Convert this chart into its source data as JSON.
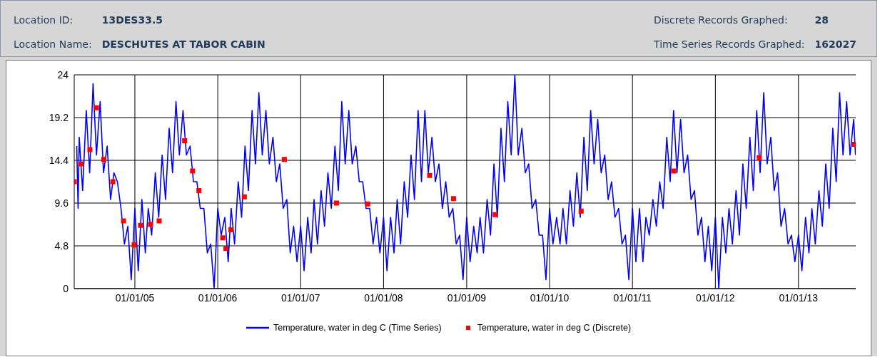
{
  "chart_data": {
    "type": "line",
    "annotations": [
      "Location ID:",
      "13DES33.5",
      "Location Name:",
      "DESCHUTES AT TABOR CABIN",
      "Discrete Records Graphed:",
      "28",
      "Time Series Records Graphed:",
      "162027"
    ],
    "xlim": [
      "2004-04-09",
      "2013-09-10"
    ],
    "xticks": [
      {
        "value": "2005-01-01",
        "label": "01/01/05"
      },
      {
        "value": "2006-01-01",
        "label": "01/01/06"
      },
      {
        "value": "2007-01-01",
        "label": "01/01/07"
      },
      {
        "value": "2008-01-01",
        "label": "01/01/08"
      },
      {
        "value": "2009-01-01",
        "label": "01/01/09"
      },
      {
        "value": "2010-01-01",
        "label": "01/01/10"
      },
      {
        "value": "2011-01-01",
        "label": "01/01/11"
      },
      {
        "value": "2012-01-01",
        "label": "01/01/12"
      },
      {
        "value": "2013-01-01",
        "label": "01/01/13"
      }
    ],
    "ylim": [
      0,
      24
    ],
    "yticks": [
      0,
      4.8,
      9.6,
      14.4,
      19.2,
      24
    ],
    "grid": true,
    "legend": "bottom",
    "line_style": "solid",
    "series": [
      {
        "name": "Temperature, water in deg C (Time Series)",
        "type": "line",
        "marker": "none",
        "color": "#0000ff",
        "x": [
          "2004-04-20",
          "2004-04-26",
          "2004-05-01",
          "2004-05-16",
          "2004-06-01",
          "2004-06-16",
          "2004-07-01",
          "2004-07-16",
          "2004-08-01",
          "2004-08-16",
          "2004-09-01",
          "2004-09-16",
          "2004-10-01",
          "2004-10-16",
          "2004-11-01",
          "2004-11-16",
          "2004-12-01",
          "2004-12-16",
          "2005-01-01",
          "2005-01-16",
          "2005-02-01",
          "2005-02-16",
          "2005-03-01",
          "2005-03-16",
          "2005-04-01",
          "2005-04-16",
          "2005-05-01",
          "2005-05-16",
          "2005-06-01",
          "2005-06-16",
          "2005-07-01",
          "2005-07-16",
          "2005-08-01",
          "2005-08-16",
          "2005-09-01",
          "2005-09-16",
          "2005-10-01",
          "2005-10-16",
          "2005-11-01",
          "2005-11-16",
          "2005-12-01",
          "2005-12-16",
          "2006-01-01",
          "2006-01-16",
          "2006-02-01",
          "2006-02-16",
          "2006-03-01",
          "2006-03-16",
          "2006-04-01",
          "2006-04-16",
          "2006-05-01",
          "2006-05-16",
          "2006-06-01",
          "2006-06-16",
          "2006-07-01",
          "2006-07-16",
          "2006-08-01",
          "2006-08-16",
          "2006-09-01",
          "2006-09-16",
          "2006-10-01",
          "2006-10-16",
          "2006-11-01",
          "2006-11-16",
          "2006-12-01",
          "2006-12-16",
          "2007-01-01",
          "2007-01-16",
          "2007-02-01",
          "2007-02-16",
          "2007-03-01",
          "2007-03-16",
          "2007-04-01",
          "2007-04-16",
          "2007-05-01",
          "2007-05-16",
          "2007-06-01",
          "2007-06-16",
          "2007-07-01",
          "2007-07-16",
          "2007-08-01",
          "2007-08-16",
          "2007-09-01",
          "2007-09-16",
          "2007-10-01",
          "2007-10-16",
          "2007-11-01",
          "2007-11-16",
          "2007-12-01",
          "2007-12-16",
          "2008-01-01",
          "2008-01-16",
          "2008-02-01",
          "2008-02-16",
          "2008-03-01",
          "2008-03-16",
          "2008-04-01",
          "2008-04-16",
          "2008-05-01",
          "2008-05-16",
          "2008-06-01",
          "2008-06-16",
          "2008-07-01",
          "2008-07-16",
          "2008-08-01",
          "2008-08-16",
          "2008-09-01",
          "2008-09-16",
          "2008-10-01",
          "2008-10-16",
          "2008-11-01",
          "2008-11-16",
          "2008-12-01",
          "2008-12-16",
          "2009-01-01",
          "2009-01-16",
          "2009-02-01",
          "2009-02-16",
          "2009-03-01",
          "2009-03-16",
          "2009-04-01",
          "2009-04-16",
          "2009-05-01",
          "2009-05-16",
          "2009-06-01",
          "2009-06-16",
          "2009-07-01",
          "2009-07-16",
          "2009-08-01",
          "2009-08-16",
          "2009-09-01",
          "2009-09-16",
          "2009-10-01",
          "2009-10-16",
          "2009-11-01",
          "2009-11-16",
          "2009-12-01",
          "2009-12-16",
          "2010-01-01",
          "2010-01-16",
          "2010-02-01",
          "2010-02-16",
          "2010-03-01",
          "2010-03-16",
          "2010-04-01",
          "2010-04-16",
          "2010-05-01",
          "2010-05-16",
          "2010-06-01",
          "2010-06-16",
          "2010-07-01",
          "2010-07-16",
          "2010-08-01",
          "2010-08-16",
          "2010-09-01",
          "2010-09-16",
          "2010-10-01",
          "2010-10-16",
          "2010-11-01",
          "2010-11-16",
          "2010-12-01",
          "2010-12-16",
          "2011-01-01",
          "2011-01-16",
          "2011-02-01",
          "2011-02-16",
          "2011-03-01",
          "2011-03-16",
          "2011-04-01",
          "2011-04-16",
          "2011-05-01",
          "2011-05-16",
          "2011-06-01",
          "2011-06-16",
          "2011-07-01",
          "2011-07-16",
          "2011-08-01",
          "2011-08-16",
          "2011-09-01",
          "2011-09-16",
          "2011-10-01",
          "2011-10-16",
          "2011-11-01",
          "2011-11-16",
          "2011-12-01",
          "2011-12-16",
          "2012-01-01",
          "2012-01-16",
          "2012-02-01",
          "2012-02-16",
          "2012-03-01",
          "2012-03-16",
          "2012-04-01",
          "2012-04-16",
          "2012-05-01",
          "2012-05-16",
          "2012-06-01",
          "2012-06-16",
          "2012-07-01",
          "2012-07-16",
          "2012-08-01",
          "2012-08-16",
          "2012-09-01",
          "2012-09-16",
          "2012-10-01",
          "2012-10-16",
          "2012-11-01",
          "2012-11-16",
          "2012-12-01",
          "2012-12-16",
          "2013-01-01",
          "2013-01-16",
          "2013-02-01",
          "2013-02-16",
          "2013-03-01",
          "2013-03-16",
          "2013-04-01",
          "2013-04-16",
          "2013-05-01",
          "2013-05-16",
          "2013-06-01",
          "2013-06-16",
          "2013-07-01",
          "2013-07-16",
          "2013-08-01",
          "2013-08-16",
          "2013-09-01",
          "2013-09-09"
        ],
        "values": [
          16,
          9,
          17,
          11,
          20,
          13,
          23,
          15,
          21,
          13,
          16,
          10,
          13,
          12,
          9,
          5,
          7,
          1,
          9,
          2,
          10,
          4,
          9,
          6,
          13,
          8,
          15,
          10,
          18,
          13,
          21,
          15,
          20,
          15,
          16,
          12,
          12,
          9,
          9,
          4,
          5,
          0,
          9,
          6,
          8,
          3,
          9,
          5,
          12,
          8,
          16,
          11,
          20,
          14,
          22,
          15,
          20,
          14,
          17,
          12,
          14,
          9,
          10,
          4,
          7,
          3,
          7,
          2,
          8,
          4,
          10,
          5,
          11,
          7,
          13,
          9,
          16,
          11,
          21,
          14,
          20,
          14,
          16,
          12,
          12,
          9,
          9,
          5,
          8,
          4,
          8,
          2,
          8,
          4,
          10,
          5,
          12,
          8,
          15,
          10,
          20,
          12,
          20,
          13,
          17,
          12,
          14,
          9,
          12,
          8,
          9,
          5,
          6,
          1,
          8,
          3,
          7,
          4,
          8,
          4,
          10,
          6,
          14,
          8,
          18,
          12,
          21,
          15,
          24,
          15,
          18,
          13,
          14,
          9,
          10,
          6,
          6,
          1,
          9,
          5,
          8,
          5,
          9,
          5,
          11,
          7,
          13,
          8,
          17,
          11,
          20,
          14,
          19,
          13,
          15,
          10,
          12,
          8,
          9,
          5,
          6,
          1,
          9,
          3,
          9,
          3,
          8,
          6,
          10,
          7,
          12,
          9,
          17,
          12,
          20,
          13,
          19,
          13,
          15,
          10,
          11,
          6,
          8,
          3,
          7,
          2,
          8,
          0,
          8,
          4,
          9,
          5,
          11,
          6,
          14,
          9,
          17,
          11,
          20,
          13,
          22,
          14,
          17,
          11,
          13,
          7,
          9,
          5,
          6,
          3,
          6,
          2,
          8,
          4,
          9,
          5,
          11,
          7,
          14,
          9,
          18,
          12,
          22,
          15,
          21,
          15,
          19,
          15
        ]
      },
      {
        "name": "Temperature, water in deg C (Discrete)",
        "type": "scatter",
        "marker": "square",
        "color": "#ff0000",
        "x": [
          "2004-04-09",
          "2004-05-08",
          "2004-06-17",
          "2004-07-16",
          "2004-08-17",
          "2004-09-26",
          "2004-11-12",
          "2004-12-29",
          "2005-01-26",
          "2005-03-11",
          "2005-04-18",
          "2005-08-08",
          "2005-09-12",
          "2005-10-10",
          "2006-01-23",
          "2006-02-06",
          "2006-02-28",
          "2006-04-28",
          "2006-10-21",
          "2007-06-08",
          "2007-10-23",
          "2008-07-22",
          "2008-11-04",
          "2009-05-06",
          "2010-05-20",
          "2011-07-02",
          "2012-07-12",
          "2013-09-04"
        ],
        "values": [
          12.0,
          14.0,
          15.6,
          20.3,
          14.5,
          12.0,
          7.6,
          4.9,
          7.1,
          7.2,
          7.6,
          16.6,
          13.2,
          11.0,
          5.7,
          4.5,
          6.6,
          10.3,
          14.5,
          9.6,
          9.5,
          12.7,
          10.1,
          8.3,
          8.7,
          13.2,
          14.7,
          16.2
        ]
      }
    ]
  }
}
